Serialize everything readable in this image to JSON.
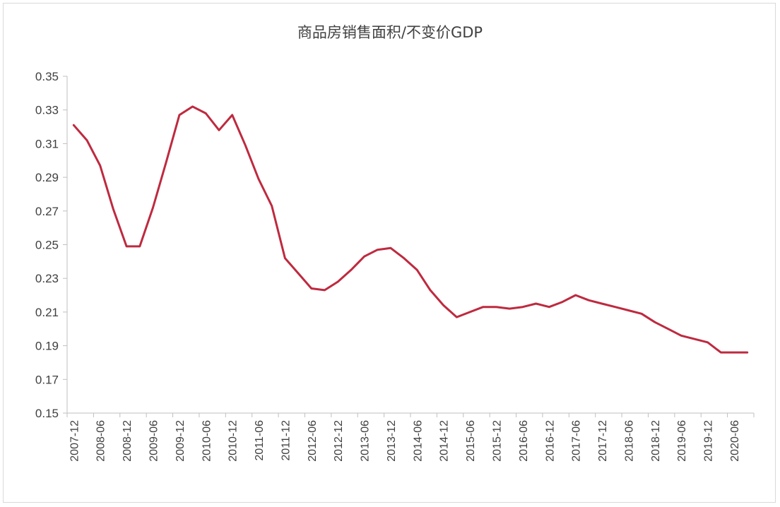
{
  "chart_data": {
    "type": "line",
    "title": "商品房销售面积/不变价GDP",
    "xlabel": "",
    "ylabel": "",
    "ylim": [
      0.15,
      0.35
    ],
    "yticks": [
      "0.15",
      "0.17",
      "0.19",
      "0.21",
      "0.23",
      "0.25",
      "0.27",
      "0.29",
      "0.31",
      "0.33",
      "0.35"
    ],
    "xtick_labels": [
      "2007-12",
      "2008-06",
      "2008-12",
      "2009-06",
      "2009-12",
      "2010-06",
      "2010-12",
      "2011-06",
      "2011-12",
      "2012-06",
      "2012-12",
      "2013-06",
      "2013-12",
      "2014-06",
      "2014-12",
      "2015-06",
      "2015-12",
      "2016-06",
      "2016-12",
      "2017-06",
      "2017-12",
      "2018-06",
      "2018-12",
      "2019-06",
      "2019-12",
      "2020-06"
    ],
    "x": [
      "2007-12",
      "2008-03",
      "2008-06",
      "2008-09",
      "2008-12",
      "2009-03",
      "2009-06",
      "2009-09",
      "2009-12",
      "2010-03",
      "2010-06",
      "2010-09",
      "2010-12",
      "2011-03",
      "2011-06",
      "2011-09",
      "2011-12",
      "2012-03",
      "2012-06",
      "2012-09",
      "2012-12",
      "2013-03",
      "2013-06",
      "2013-09",
      "2013-12",
      "2014-03",
      "2014-06",
      "2014-09",
      "2014-12",
      "2015-03",
      "2015-06",
      "2015-09",
      "2015-12",
      "2016-03",
      "2016-06",
      "2016-09",
      "2016-12",
      "2017-03",
      "2017-06",
      "2017-09",
      "2017-12",
      "2018-03",
      "2018-06",
      "2018-09",
      "2018-12",
      "2019-03",
      "2019-06",
      "2019-09",
      "2019-12",
      "2020-03",
      "2020-06",
      "2020-09"
    ],
    "series": [
      {
        "values": [
          0.321,
          0.312,
          0.297,
          0.271,
          0.249,
          0.249,
          0.272,
          0.299,
          0.327,
          0.332,
          0.328,
          0.318,
          0.327,
          0.309,
          0.289,
          0.273,
          0.242,
          0.233,
          0.224,
          0.223,
          0.228,
          0.235,
          0.243,
          0.247,
          0.248,
          0.242,
          0.235,
          0.223,
          0.214,
          0.207,
          0.21,
          0.213,
          0.213,
          0.212,
          0.213,
          0.215,
          0.213,
          0.216,
          0.22,
          0.217,
          0.215,
          0.213,
          0.211,
          0.209,
          0.204,
          0.2,
          0.196,
          0.194,
          0.192,
          0.186,
          0.186,
          0.186
        ]
      }
    ],
    "colors": {
      "line": "#be2a3f",
      "axis": "#bfbfbf",
      "text": "#404040"
    },
    "grid": false,
    "legend": "none"
  }
}
